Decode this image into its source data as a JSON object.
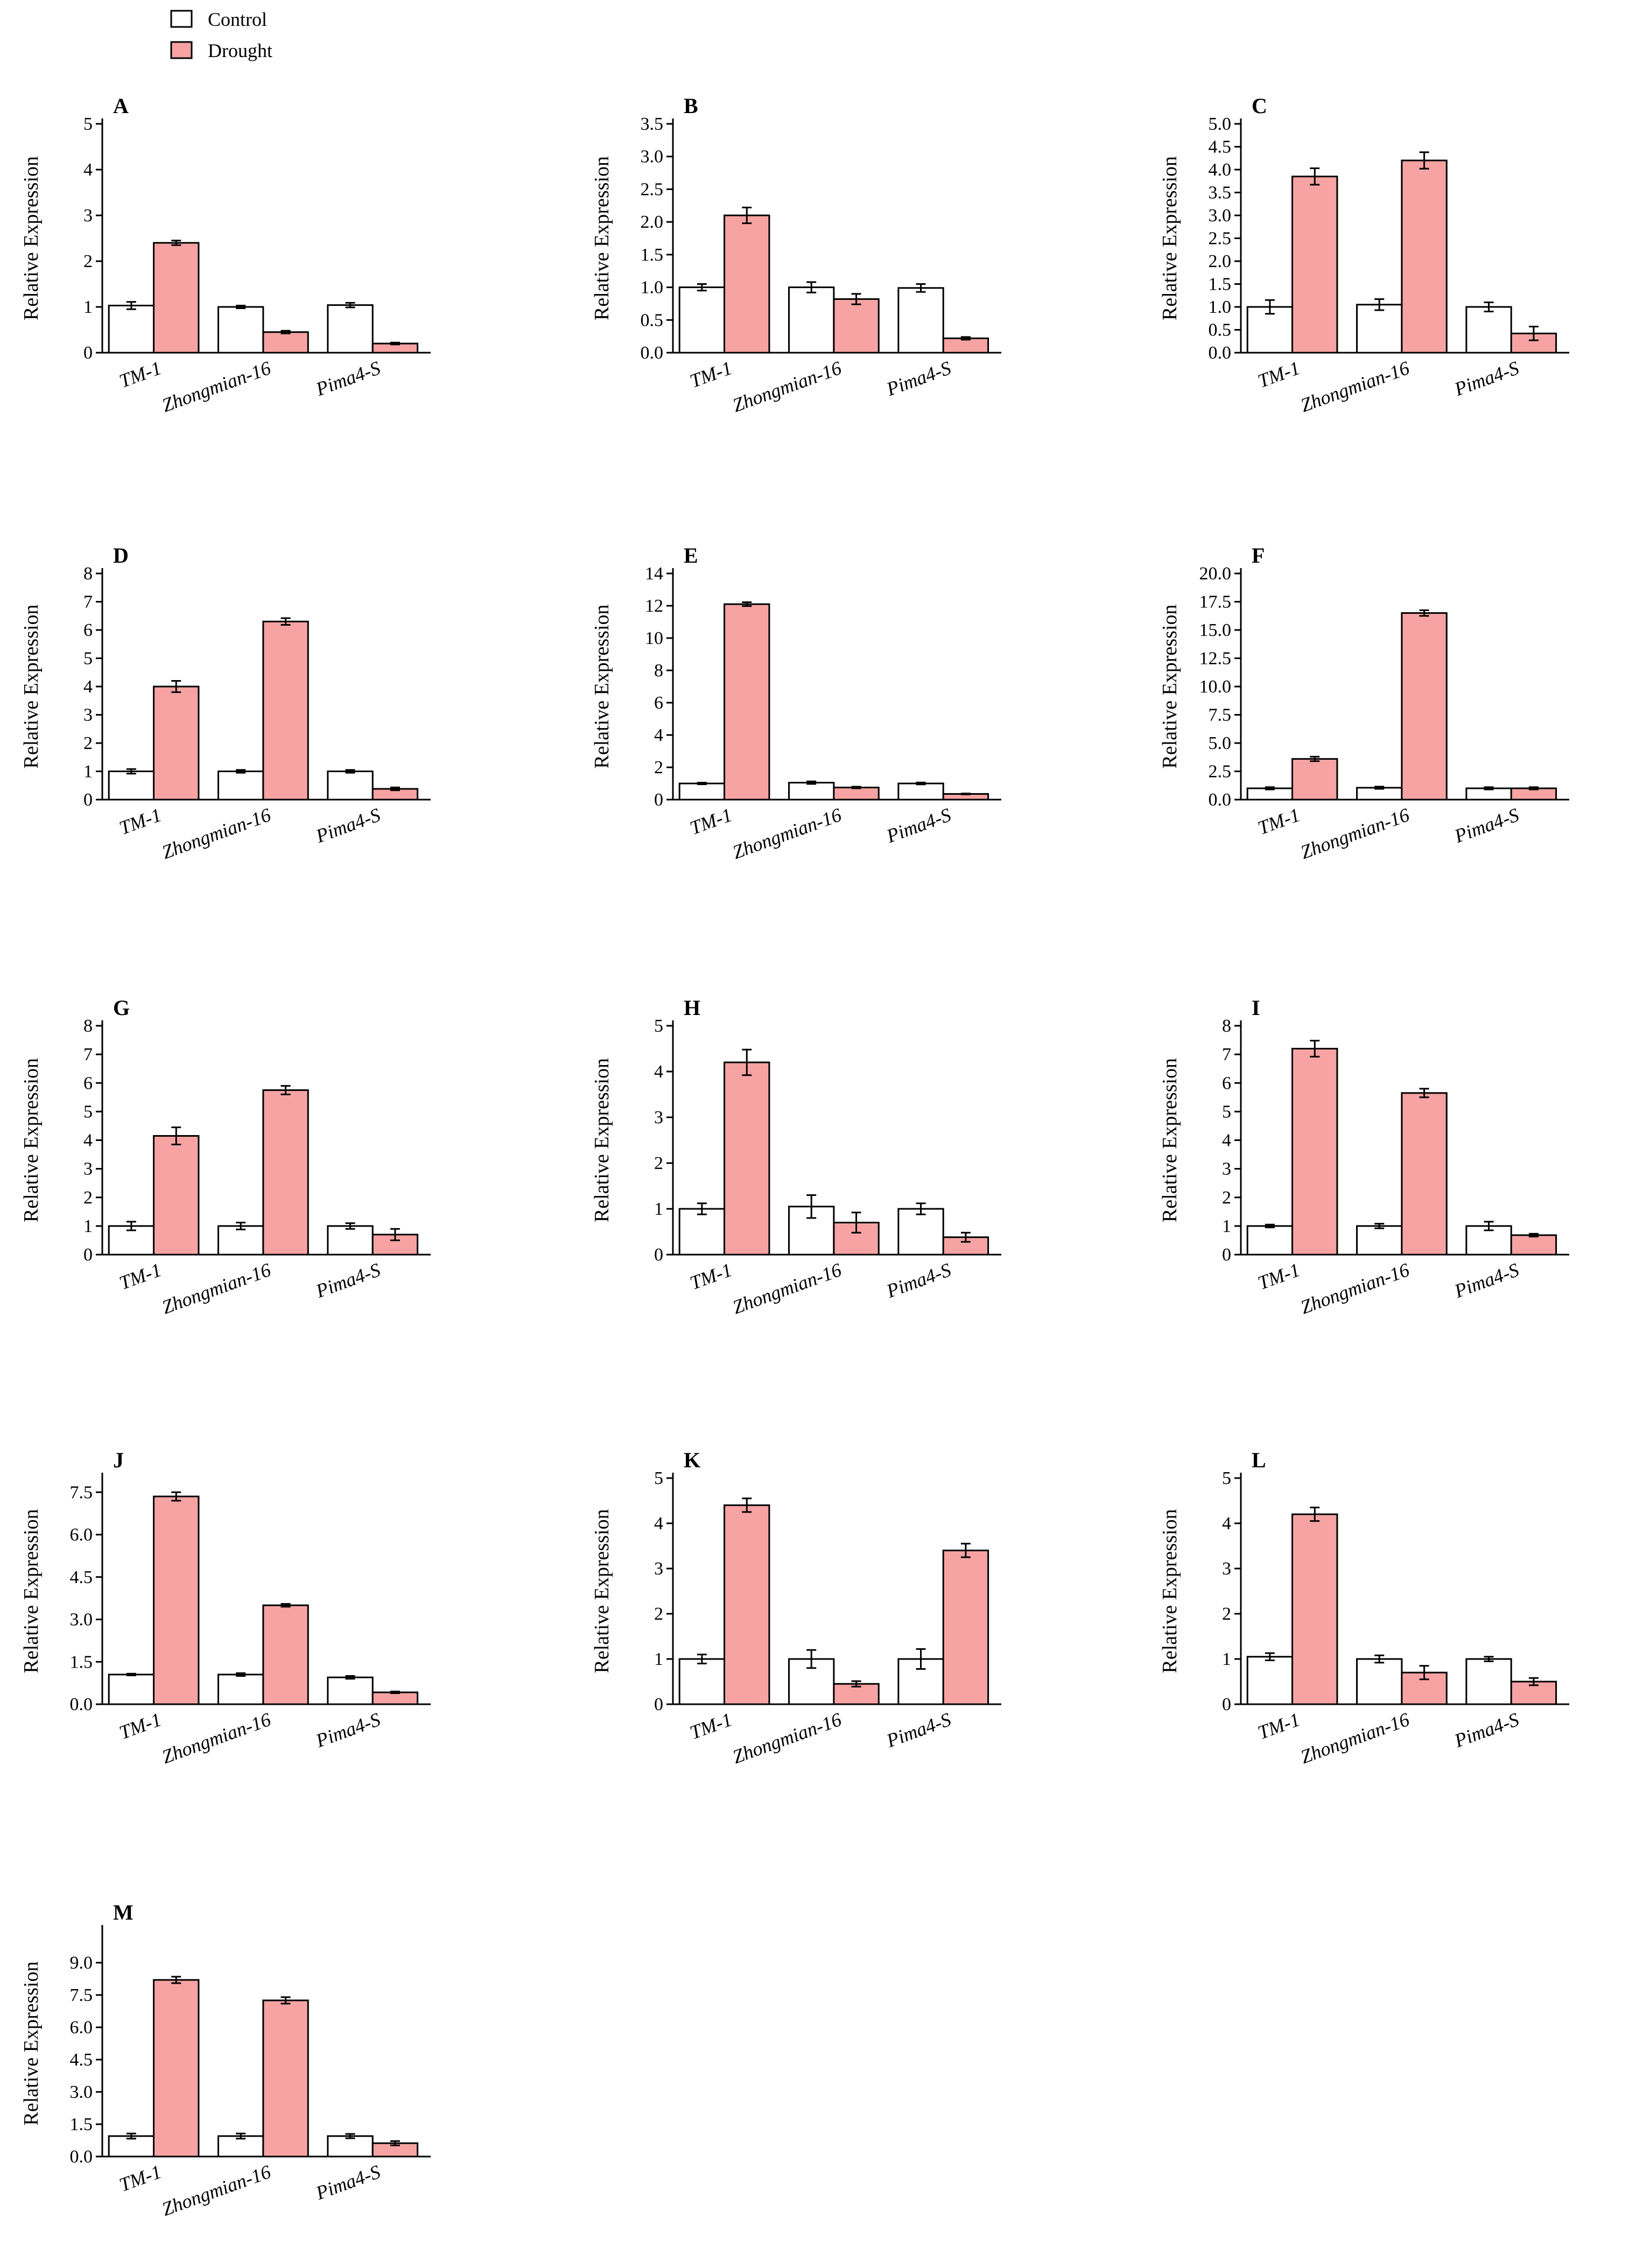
{
  "legend": [
    {
      "label": "Control",
      "color": "#ffffff"
    },
    {
      "label": "Drought",
      "color": "#f7a3a3"
    }
  ],
  "colors": {
    "control": "#ffffff",
    "drought": "#f7a3a3",
    "stroke": "#000000"
  },
  "chart_data": [
    {
      "panel": "A",
      "type": "bar",
      "ylabel": "Relative Expression",
      "categories": [
        "TM-1",
        "Zhongmian-16",
        "Pima4-S"
      ],
      "ylim": [
        0,
        5
      ],
      "yticks": [
        "0",
        "1",
        "2",
        "3",
        "4",
        "5"
      ],
      "series": [
        {
          "name": "Control",
          "values": [
            1.03,
            1.0,
            1.04
          ],
          "errors": [
            0.08,
            0.03,
            0.05
          ]
        },
        {
          "name": "Drought",
          "values": [
            2.4,
            0.45,
            0.2
          ],
          "errors": [
            0.05,
            0.03,
            0.02
          ]
        }
      ]
    },
    {
      "panel": "B",
      "type": "bar",
      "ylabel": "Relative Expression",
      "categories": [
        "TM-1",
        "Zhongmian-16",
        "Pima4-S"
      ],
      "ylim": [
        0,
        3.5
      ],
      "yticks": [
        "0.0",
        "0.5",
        "1.0",
        "1.5",
        "2.0",
        "2.5",
        "3.0",
        "3.5"
      ],
      "series": [
        {
          "name": "Control",
          "values": [
            1.0,
            1.0,
            0.99
          ],
          "errors": [
            0.05,
            0.08,
            0.06
          ]
        },
        {
          "name": "Drought",
          "values": [
            2.1,
            0.82,
            0.22
          ],
          "errors": [
            0.12,
            0.08,
            0.02
          ]
        }
      ]
    },
    {
      "panel": "C",
      "type": "bar",
      "ylabel": "Relative Expression",
      "categories": [
        "TM-1",
        "Zhongmian-16",
        "Pima4-S"
      ],
      "ylim": [
        0,
        5.0
      ],
      "yticks": [
        "0.0",
        "0.5",
        "1.0",
        "1.5",
        "2.0",
        "2.5",
        "3.0",
        "3.5",
        "4.0",
        "4.5",
        "5.0"
      ],
      "series": [
        {
          "name": "Control",
          "values": [
            1.0,
            1.05,
            1.0
          ],
          "errors": [
            0.15,
            0.12,
            0.1
          ]
        },
        {
          "name": "Drought",
          "values": [
            3.85,
            4.2,
            0.42
          ],
          "errors": [
            0.18,
            0.18,
            0.15
          ]
        }
      ]
    },
    {
      "panel": "D",
      "type": "bar",
      "ylabel": "Relative Expression",
      "categories": [
        "TM-1",
        "Zhongmian-16",
        "Pima4-S"
      ],
      "ylim": [
        0,
        8
      ],
      "yticks": [
        "0",
        "1",
        "2",
        "3",
        "4",
        "5",
        "6",
        "7",
        "8"
      ],
      "series": [
        {
          "name": "Control",
          "values": [
            1.0,
            1.0,
            1.0
          ],
          "errors": [
            0.08,
            0.05,
            0.05
          ]
        },
        {
          "name": "Drought",
          "values": [
            4.0,
            6.3,
            0.38
          ],
          "errors": [
            0.2,
            0.12,
            0.05
          ]
        }
      ]
    },
    {
      "panel": "E",
      "type": "bar",
      "ylabel": "Relative Expression",
      "categories": [
        "TM-1",
        "Zhongmian-16",
        "Pima4-S"
      ],
      "ylim": [
        0,
        14
      ],
      "yticks": [
        "0",
        "2",
        "4",
        "6",
        "8",
        "10",
        "12",
        "14"
      ],
      "series": [
        {
          "name": "Control",
          "values": [
            1.0,
            1.05,
            1.0
          ],
          "errors": [
            0.05,
            0.08,
            0.06
          ]
        },
        {
          "name": "Drought",
          "values": [
            12.1,
            0.75,
            0.35
          ],
          "errors": [
            0.12,
            0.05,
            0.03
          ]
        }
      ]
    },
    {
      "panel": "F",
      "type": "bar",
      "ylabel": "Relative Expression",
      "categories": [
        "TM-1",
        "Zhongmian-16",
        "Pima4-S"
      ],
      "ylim": [
        0,
        20.0
      ],
      "yticks": [
        "0.0",
        "2.5",
        "5.0",
        "7.5",
        "10.0",
        "12.5",
        "15.0",
        "17.5",
        "20.0"
      ],
      "series": [
        {
          "name": "Control",
          "values": [
            1.0,
            1.05,
            1.0
          ],
          "errors": [
            0.1,
            0.1,
            0.1
          ]
        },
        {
          "name": "Drought",
          "values": [
            3.6,
            16.5,
            1.0
          ],
          "errors": [
            0.2,
            0.25,
            0.1
          ]
        }
      ]
    },
    {
      "panel": "G",
      "type": "bar",
      "ylabel": "Relative Expression",
      "categories": [
        "TM-1",
        "Zhongmian-16",
        "Pima4-S"
      ],
      "ylim": [
        0,
        8
      ],
      "yticks": [
        "0",
        "1",
        "2",
        "3",
        "4",
        "5",
        "6",
        "7",
        "8"
      ],
      "series": [
        {
          "name": "Control",
          "values": [
            1.0,
            1.0,
            1.0
          ],
          "errors": [
            0.15,
            0.12,
            0.1
          ]
        },
        {
          "name": "Drought",
          "values": [
            4.15,
            5.75,
            0.7
          ],
          "errors": [
            0.3,
            0.15,
            0.2
          ]
        }
      ]
    },
    {
      "panel": "H",
      "type": "bar",
      "ylabel": "Relative Expression",
      "categories": [
        "TM-1",
        "Zhongmian-16",
        "Pima4-S"
      ],
      "ylim": [
        0,
        5
      ],
      "yticks": [
        "0",
        "1",
        "2",
        "3",
        "4",
        "5"
      ],
      "series": [
        {
          "name": "Control",
          "values": [
            1.0,
            1.05,
            1.0
          ],
          "errors": [
            0.12,
            0.25,
            0.12
          ]
        },
        {
          "name": "Drought",
          "values": [
            4.2,
            0.7,
            0.38
          ],
          "errors": [
            0.28,
            0.22,
            0.1
          ]
        }
      ]
    },
    {
      "panel": "I",
      "type": "bar",
      "ylabel": "Relative Expression",
      "categories": [
        "TM-1",
        "Zhongmian-16",
        "Pima4-S"
      ],
      "ylim": [
        0,
        8
      ],
      "yticks": [
        "0",
        "1",
        "2",
        "3",
        "4",
        "5",
        "6",
        "7",
        "8"
      ],
      "series": [
        {
          "name": "Control",
          "values": [
            1.0,
            1.0,
            1.0
          ],
          "errors": [
            0.05,
            0.08,
            0.15
          ]
        },
        {
          "name": "Drought",
          "values": [
            7.2,
            5.65,
            0.68
          ],
          "errors": [
            0.28,
            0.15,
            0.05
          ]
        }
      ]
    },
    {
      "panel": "J",
      "type": "bar",
      "ylabel": "Relative Expression",
      "categories": [
        "TM-1",
        "Zhongmian-16",
        "Pima4-S"
      ],
      "ylim": [
        0,
        8.0
      ],
      "yticks": [
        "0.0",
        "1.5",
        "3.0",
        "4.5",
        "6.0",
        "7.5"
      ],
      "series": [
        {
          "name": "Control",
          "values": [
            1.05,
            1.05,
            0.95
          ],
          "errors": [
            0.03,
            0.05,
            0.05
          ]
        },
        {
          "name": "Drought",
          "values": [
            7.35,
            3.5,
            0.42
          ],
          "errors": [
            0.15,
            0.05,
            0.03
          ]
        }
      ]
    },
    {
      "panel": "K",
      "type": "bar",
      "ylabel": "Relative Expression",
      "categories": [
        "TM-1",
        "Zhongmian-16",
        "Pima4-S"
      ],
      "ylim": [
        0,
        5
      ],
      "yticks": [
        "0",
        "1",
        "2",
        "3",
        "4",
        "5"
      ],
      "series": [
        {
          "name": "Control",
          "values": [
            1.0,
            1.0,
            1.0
          ],
          "errors": [
            0.1,
            0.2,
            0.22
          ]
        },
        {
          "name": "Drought",
          "values": [
            4.4,
            0.45,
            3.4
          ],
          "errors": [
            0.15,
            0.06,
            0.15
          ]
        }
      ]
    },
    {
      "panel": "L",
      "type": "bar",
      "ylabel": "Relative Expression",
      "categories": [
        "TM-1",
        "Zhongmian-16",
        "Pima4-S"
      ],
      "ylim": [
        0,
        5
      ],
      "yticks": [
        "0",
        "1",
        "2",
        "3",
        "4",
        "5"
      ],
      "series": [
        {
          "name": "Control",
          "values": [
            1.05,
            1.0,
            1.0
          ],
          "errors": [
            0.08,
            0.08,
            0.05
          ]
        },
        {
          "name": "Drought",
          "values": [
            4.2,
            0.7,
            0.5
          ],
          "errors": [
            0.15,
            0.15,
            0.08
          ]
        }
      ]
    },
    {
      "panel": "M",
      "type": "bar",
      "ylabel": "Relative Expression",
      "categories": [
        "TM-1",
        "Zhongmian-16",
        "Pima4-S"
      ],
      "ylim": [
        0,
        10.5
      ],
      "yticks": [
        "0.0",
        "1.5",
        "3.0",
        "4.5",
        "6.0",
        "7.5",
        "9.0"
      ],
      "series": [
        {
          "name": "Control",
          "values": [
            0.95,
            0.95,
            0.95
          ],
          "errors": [
            0.12,
            0.12,
            0.1
          ]
        },
        {
          "name": "Drought",
          "values": [
            8.2,
            7.25,
            0.62
          ],
          "errors": [
            0.15,
            0.15,
            0.1
          ]
        }
      ]
    }
  ]
}
